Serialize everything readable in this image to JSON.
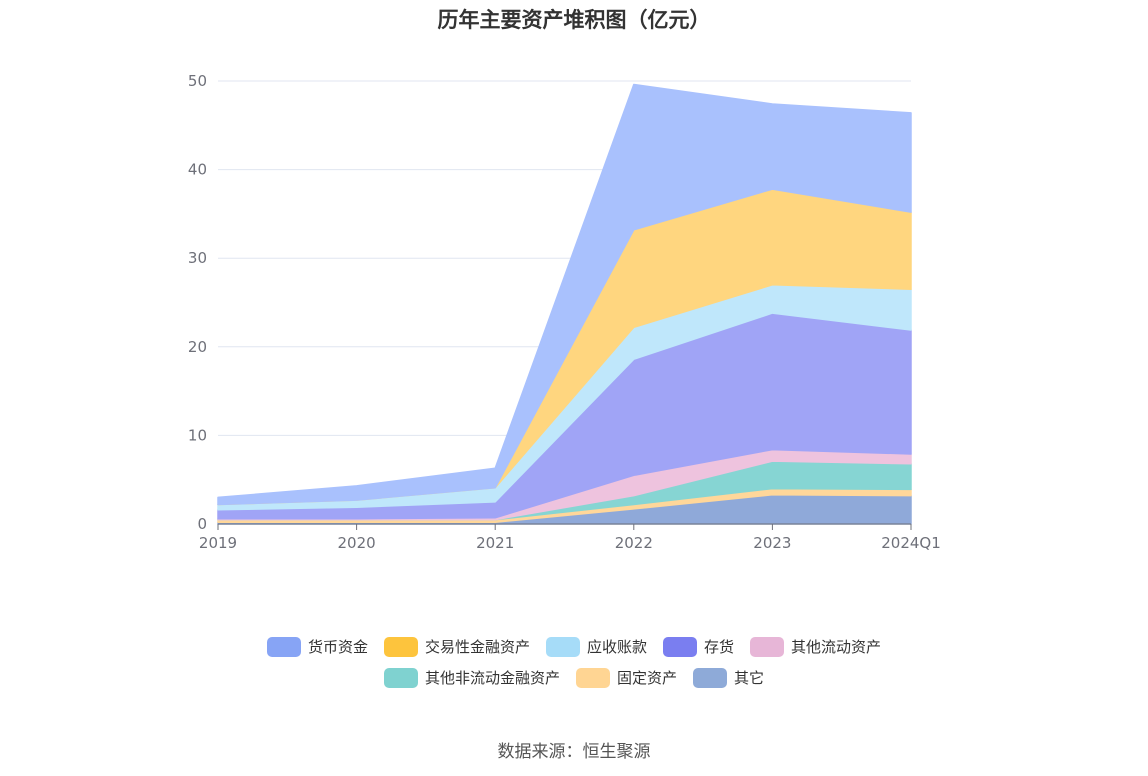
{
  "chart_data": {
    "type": "area",
    "stacked": true,
    "title": "历年主要资产堆积图（亿元）",
    "categories": [
      "2019",
      "2020",
      "2021",
      "2022",
      "2023",
      "2024Q1"
    ],
    "ylim": [
      0,
      50
    ],
    "yticks": [
      0,
      10,
      20,
      30,
      40,
      50
    ],
    "grid": true,
    "legend_position": "bottom",
    "series": [
      {
        "name": "其它",
        "color": "#8fa9d9",
        "values": [
          0.2,
          0.2,
          0.2,
          1.7,
          3.3,
          3.2
        ]
      },
      {
        "name": "固定资产",
        "color": "#ffd79a",
        "values": [
          0.3,
          0.3,
          0.3,
          0.5,
          0.7,
          0.7
        ]
      },
      {
        "name": "其他非流动金融资产",
        "color": "#86d5d3",
        "values": [
          0.0,
          0.0,
          0.0,
          1.0,
          3.1,
          2.9
        ]
      },
      {
        "name": "其他流动资产",
        "color": "#eec3de",
        "values": [
          0.1,
          0.1,
          0.2,
          2.3,
          1.3,
          1.1
        ]
      },
      {
        "name": "存货",
        "color": "#a0a4f6",
        "values": [
          1.0,
          1.3,
          1.8,
          13.1,
          15.4,
          14.0
        ]
      },
      {
        "name": "应收账款",
        "color": "#bfe7fb",
        "values": [
          0.6,
          0.8,
          1.6,
          3.6,
          3.2,
          4.6
        ]
      },
      {
        "name": "交易性金融资产",
        "color": "#ffd67f",
        "values": [
          0.0,
          0.0,
          0.0,
          11.0,
          10.8,
          8.7
        ]
      },
      {
        "name": "货币资金",
        "color": "#a9c1fd",
        "values": [
          0.8,
          1.6,
          2.2,
          16.4,
          9.6,
          11.2
        ]
      }
    ]
  },
  "legend": {
    "row1": [
      {
        "name": "货币资金",
        "color": "#87a4f5"
      },
      {
        "name": "交易性金融资产",
        "color": "#fdc43d"
      },
      {
        "name": "应收账款",
        "color": "#a6dcf8"
      },
      {
        "name": "存货",
        "color": "#7a7ef0"
      },
      {
        "name": "其他流动资产",
        "color": "#e7b6d7"
      }
    ],
    "row2": [
      {
        "name": "其他非流动金融资产",
        "color": "#7fd2d0"
      },
      {
        "name": "固定资产",
        "color": "#ffd593"
      },
      {
        "name": "其它",
        "color": "#8eaad8"
      }
    ]
  },
  "source": "数据来源：恒生聚源"
}
